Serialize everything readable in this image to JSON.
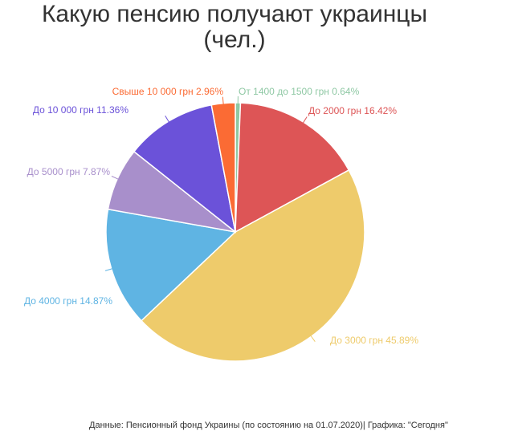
{
  "chart_data": {
    "type": "pie",
    "title_line1": "Какую пенсию получают украинцы",
    "title_line2": "(чел.)",
    "slices": [
      {
        "label": "От 1400 до 1500 грн",
        "value": 0.64,
        "display": "0.64%",
        "color": "#8fc8a4"
      },
      {
        "label": "До 2000 грн",
        "value": 16.42,
        "display": "16.42%",
        "color": "#dd5556"
      },
      {
        "label": "До 3000 грн",
        "value": 45.89,
        "display": "45.89%",
        "color": "#eecb6b"
      },
      {
        "label": "До 4000 грн",
        "value": 14.87,
        "display": "14.87%",
        "color": "#5fb4e3"
      },
      {
        "label": "До 5000 грн",
        "value": 7.87,
        "display": "7.87%",
        "color": "#a88fcb"
      },
      {
        "label": "До 10 000 грн",
        "value": 11.36,
        "display": "11.36%",
        "color": "#6b52d9"
      },
      {
        "label": "Свыше 10 000 грн",
        "value": 2.96,
        "display": "2.96%",
        "color": "#fb6b34"
      }
    ]
  },
  "source": "Данные: Пенсионный фонд Украины (по состоянию на 01.07.2020)| Графика: \"Сегодня\""
}
